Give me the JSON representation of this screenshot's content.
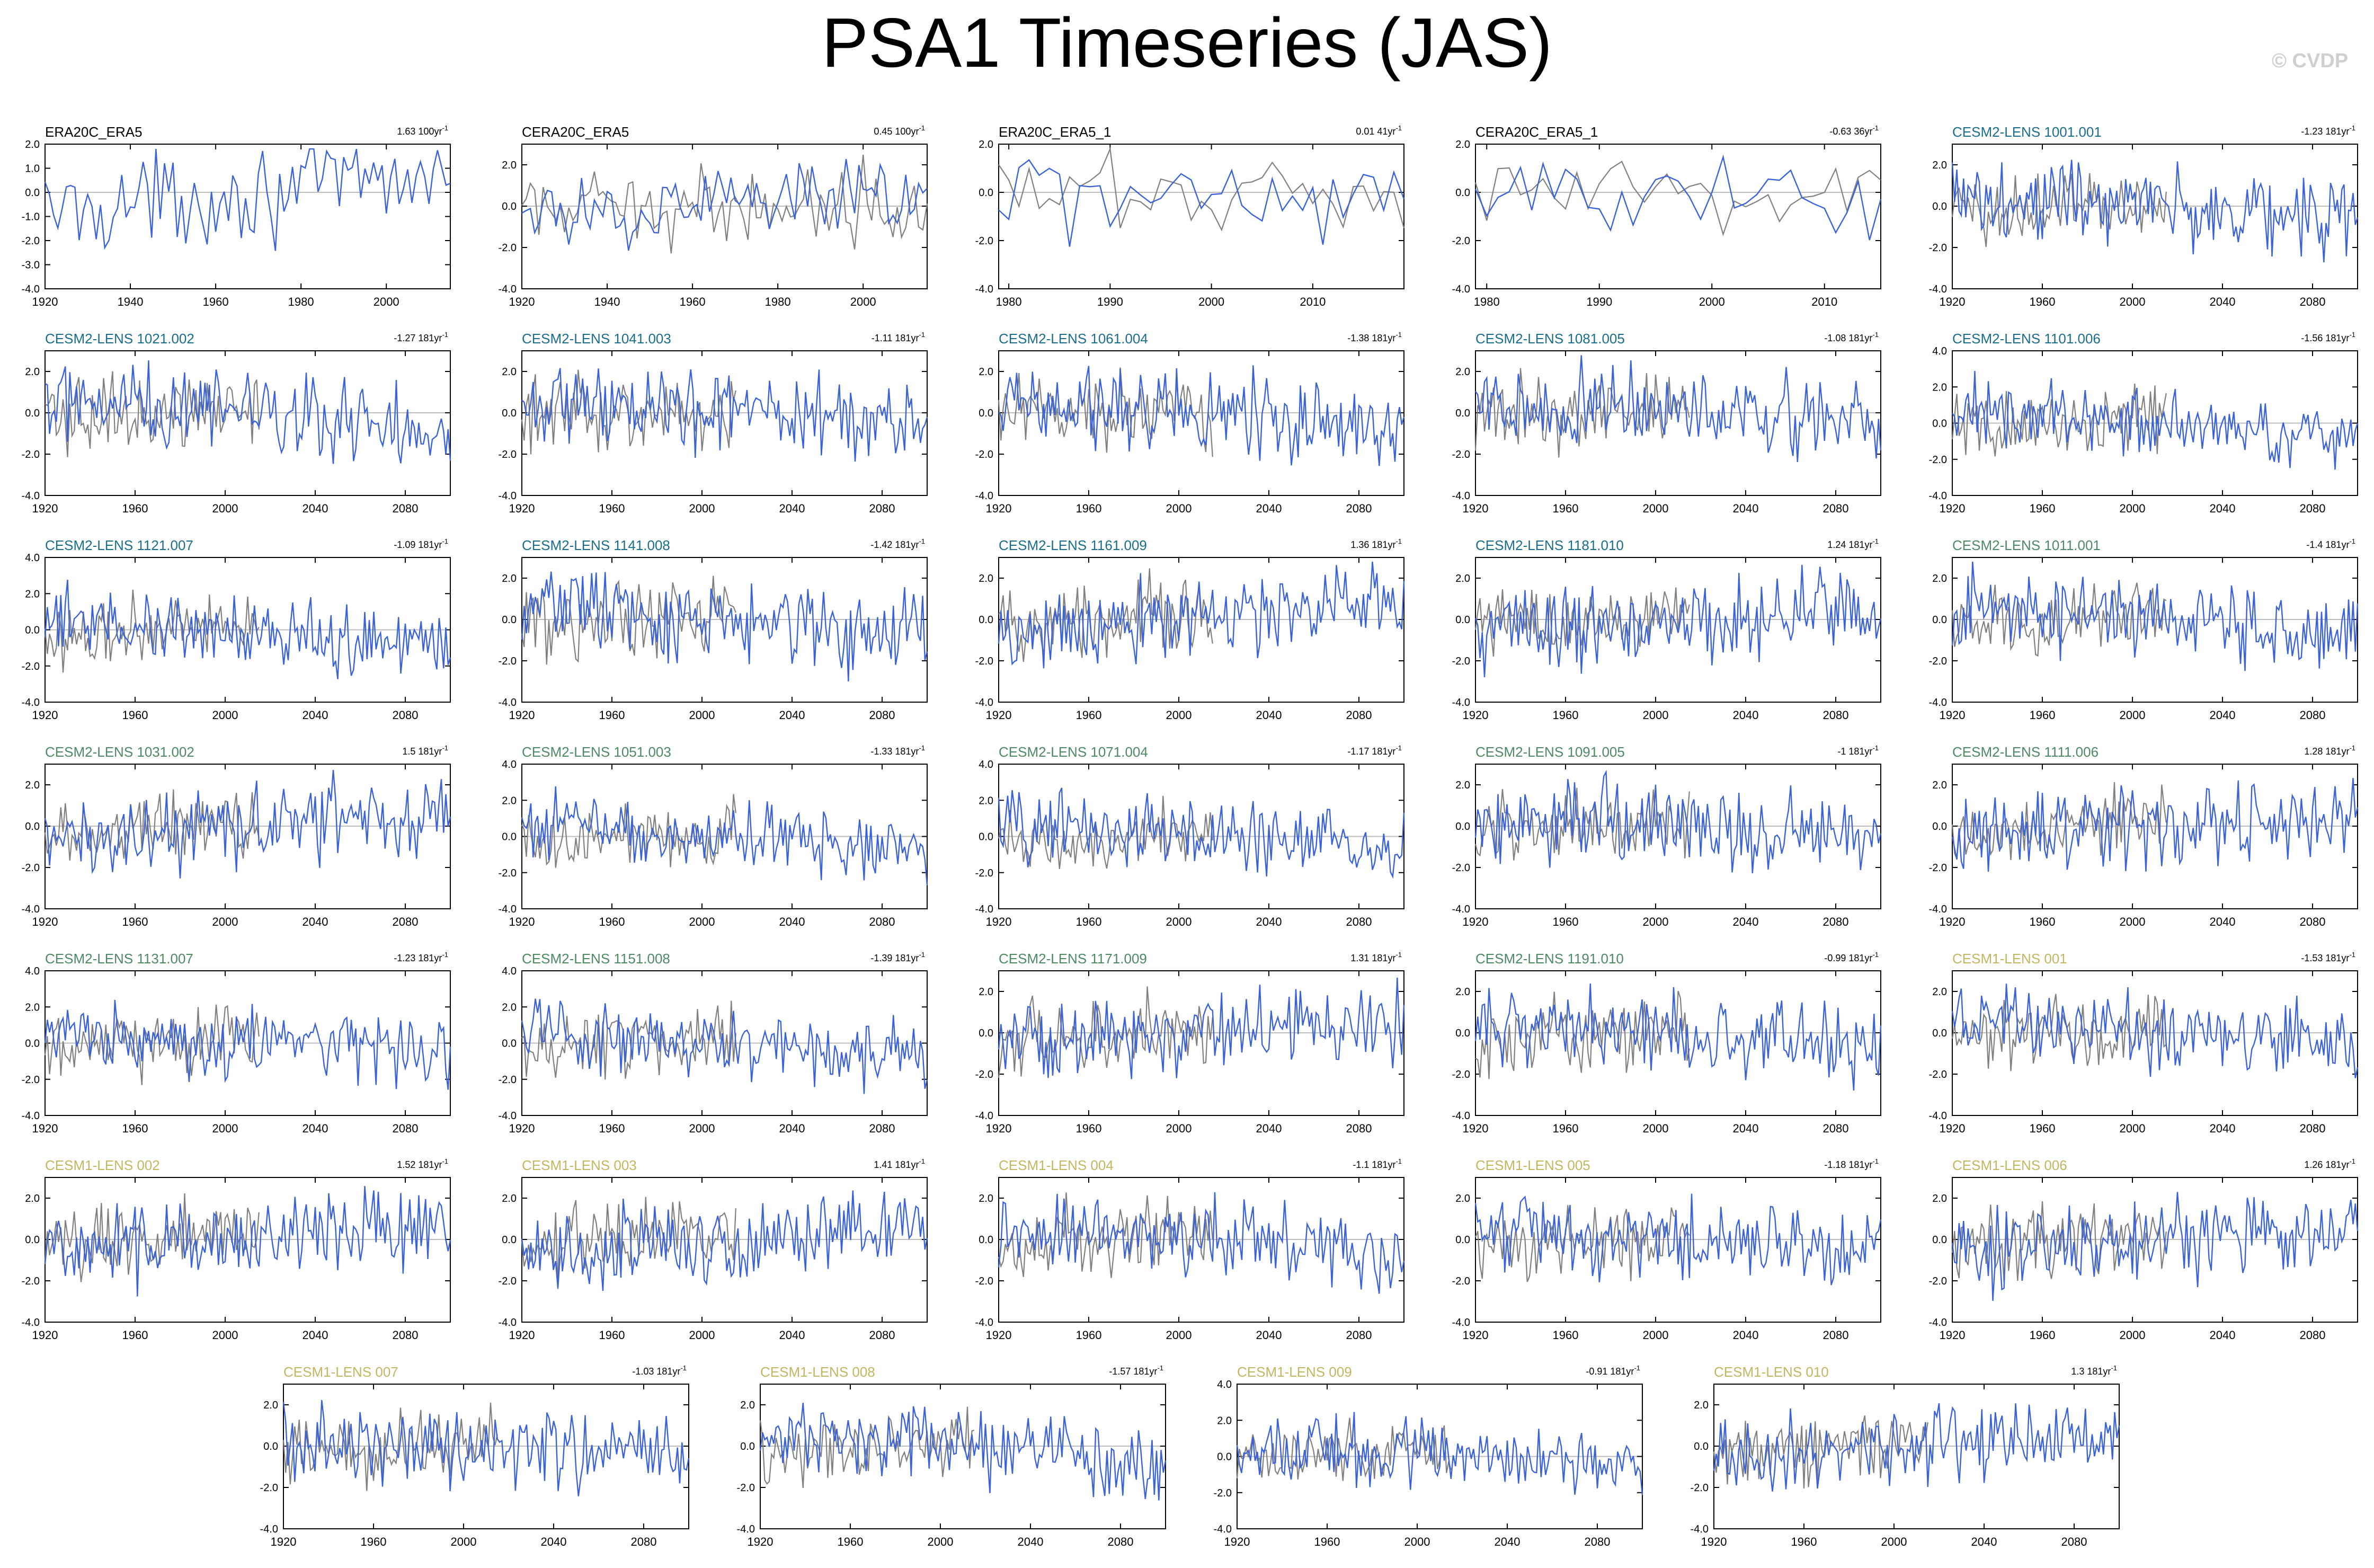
{
  "title": "PSA1 Timeseries (JAS)",
  "watermark": "© CVDP",
  "colors": {
    "obs_label": "#000000",
    "cesm2_smbb": "#1a6e8c",
    "cesm2_cmip6": "#4d8a63",
    "cesm1": "#c3b660",
    "model_line": "#3a62d9",
    "obs_line": "#808080",
    "zero_line": "#bdbdbd"
  },
  "chart_data": [
    {
      "type": "line",
      "title": "ERA20C_ERA5",
      "trend": "1.63 100yr",
      "group": "obs",
      "series_kind": "single",
      "xlim": [
        1920,
        2015
      ],
      "xticks": [
        1920,
        1940,
        1960,
        1980,
        2000
      ],
      "yticks": [
        "2.0",
        "1.0",
        "0.0",
        "-1.0",
        "-2.0",
        "-3.0",
        "-4.0"
      ],
      "ylim": [
        -4,
        2
      ]
    },
    {
      "type": "line",
      "title": "CERA20C_ERA5",
      "trend": "0.45 100yr",
      "group": "obs",
      "series_kind": "double",
      "xlim": [
        1920,
        2015
      ],
      "xticks": [
        1920,
        1940,
        1960,
        1980,
        2000
      ],
      "yticks": [
        "2.0",
        "0.0",
        "-2.0",
        "-4.0"
      ],
      "ylim": [
        -4,
        3
      ]
    },
    {
      "type": "line",
      "title": "ERA20C_ERA5_1",
      "trend": "0.01 41yr",
      "group": "obs",
      "series_kind": "double",
      "xlim": [
        1979,
        2019
      ],
      "xticks": [
        1980,
        1990,
        2000,
        2010
      ],
      "yticks": [
        "2.0",
        "0.0",
        "-2.0",
        "-4.0"
      ],
      "ylim": [
        -4,
        2
      ]
    },
    {
      "type": "line",
      "title": "CERA20C_ERA5_1",
      "trend": "-0.63 36yr",
      "group": "obs",
      "series_kind": "double",
      "xlim": [
        1979,
        2015
      ],
      "xticks": [
        1980,
        1990,
        2000,
        2010
      ],
      "yticks": [
        "2.0",
        "0.0",
        "-2.0",
        "-4.0"
      ],
      "ylim": [
        -4,
        2
      ]
    },
    {
      "type": "line",
      "title": "CESM2-LENS 1001.001",
      "trend": "-1.23 181yr",
      "group": "smbb",
      "series_kind": "long",
      "xlim": [
        1920,
        2100
      ],
      "xticks": [
        1920,
        1960,
        2000,
        2040,
        2080
      ],
      "yticks": [
        "2.0",
        "0.0",
        "-2.0",
        "-4.0"
      ],
      "ylim": [
        -4,
        3
      ]
    },
    {
      "type": "line",
      "title": "CESM2-LENS 1021.002",
      "trend": "-1.27 181yr",
      "group": "smbb",
      "series_kind": "long",
      "xlim": [
        1920,
        2100
      ],
      "xticks": [
        1920,
        1960,
        2000,
        2040,
        2080
      ],
      "yticks": [
        "2.0",
        "0.0",
        "-2.0",
        "-4.0"
      ],
      "ylim": [
        -4,
        3
      ]
    },
    {
      "type": "line",
      "title": "CESM2-LENS 1041.003",
      "trend": "-1.11 181yr",
      "group": "smbb",
      "series_kind": "long",
      "xlim": [
        1920,
        2100
      ],
      "xticks": [
        1920,
        1960,
        2000,
        2040,
        2080
      ],
      "yticks": [
        "2.0",
        "0.0",
        "-2.0",
        "-4.0"
      ],
      "ylim": [
        -4,
        3
      ]
    },
    {
      "type": "line",
      "title": "CESM2-LENS 1061.004",
      "trend": "-1.38 181yr",
      "group": "smbb",
      "series_kind": "long",
      "xlim": [
        1920,
        2100
      ],
      "xticks": [
        1920,
        1960,
        2000,
        2040,
        2080
      ],
      "yticks": [
        "2.0",
        "0.0",
        "-2.0",
        "-4.0"
      ],
      "ylim": [
        -4,
        3
      ]
    },
    {
      "type": "line",
      "title": "CESM2-LENS 1081.005",
      "trend": "-1.08 181yr",
      "group": "smbb",
      "series_kind": "long",
      "xlim": [
        1920,
        2100
      ],
      "xticks": [
        1920,
        1960,
        2000,
        2040,
        2080
      ],
      "yticks": [
        "2.0",
        "0.0",
        "-2.0",
        "-4.0"
      ],
      "ylim": [
        -4,
        3
      ]
    },
    {
      "type": "line",
      "title": "CESM2-LENS 1101.006",
      "trend": "-1.56 181yr",
      "group": "smbb",
      "series_kind": "long",
      "xlim": [
        1920,
        2100
      ],
      "xticks": [
        1920,
        1960,
        2000,
        2040,
        2080
      ],
      "yticks": [
        "4.0",
        "2.0",
        "0.0",
        "-2.0",
        "-4.0"
      ],
      "ylim": [
        -4,
        4
      ]
    },
    {
      "type": "line",
      "title": "CESM2-LENS 1121.007",
      "trend": "-1.09 181yr",
      "group": "smbb",
      "series_kind": "long",
      "xlim": [
        1920,
        2100
      ],
      "xticks": [
        1920,
        1960,
        2000,
        2040,
        2080
      ],
      "yticks": [
        "4.0",
        "2.0",
        "0.0",
        "-2.0",
        "-4.0"
      ],
      "ylim": [
        -4,
        4
      ]
    },
    {
      "type": "line",
      "title": "CESM2-LENS 1141.008",
      "trend": "-1.42 181yr",
      "group": "smbb",
      "series_kind": "long",
      "xlim": [
        1920,
        2100
      ],
      "xticks": [
        1920,
        1960,
        2000,
        2040,
        2080
      ],
      "yticks": [
        "2.0",
        "0.0",
        "-2.0",
        "-4.0"
      ],
      "ylim": [
        -4,
        3
      ]
    },
    {
      "type": "line",
      "title": "CESM2-LENS 1161.009",
      "trend": "1.36 181yr",
      "group": "smbb",
      "series_kind": "long",
      "xlim": [
        1920,
        2100
      ],
      "xticks": [
        1920,
        1960,
        2000,
        2040,
        2080
      ],
      "yticks": [
        "2.0",
        "0.0",
        "-2.0",
        "-4.0"
      ],
      "ylim": [
        -4,
        3
      ]
    },
    {
      "type": "line",
      "title": "CESM2-LENS 1181.010",
      "trend": "1.24 181yr",
      "group": "smbb",
      "series_kind": "long",
      "xlim": [
        1920,
        2100
      ],
      "xticks": [
        1920,
        1960,
        2000,
        2040,
        2080
      ],
      "yticks": [
        "2.0",
        "0.0",
        "-2.0",
        "-4.0"
      ],
      "ylim": [
        -4,
        3
      ]
    },
    {
      "type": "line",
      "title": "CESM2-LENS 1011.001",
      "trend": "-1.4 181yr",
      "group": "cmip6",
      "series_kind": "long",
      "xlim": [
        1920,
        2100
      ],
      "xticks": [
        1920,
        1960,
        2000,
        2040,
        2080
      ],
      "yticks": [
        "2.0",
        "0.0",
        "-2.0",
        "-4.0"
      ],
      "ylim": [
        -4,
        3
      ]
    },
    {
      "type": "line",
      "title": "CESM2-LENS 1031.002",
      "trend": "1.5 181yr",
      "group": "cmip6",
      "series_kind": "long",
      "xlim": [
        1920,
        2100
      ],
      "xticks": [
        1920,
        1960,
        2000,
        2040,
        2080
      ],
      "yticks": [
        "2.0",
        "0.0",
        "-2.0",
        "-4.0"
      ],
      "ylim": [
        -4,
        3
      ]
    },
    {
      "type": "line",
      "title": "CESM2-LENS 1051.003",
      "trend": "-1.33 181yr",
      "group": "cmip6",
      "series_kind": "long",
      "xlim": [
        1920,
        2100
      ],
      "xticks": [
        1920,
        1960,
        2000,
        2040,
        2080
      ],
      "yticks": [
        "4.0",
        "2.0",
        "0.0",
        "-2.0",
        "-4.0"
      ],
      "ylim": [
        -4,
        4
      ]
    },
    {
      "type": "line",
      "title": "CESM2-LENS 1071.004",
      "trend": "-1.17 181yr",
      "group": "cmip6",
      "series_kind": "long",
      "xlim": [
        1920,
        2100
      ],
      "xticks": [
        1920,
        1960,
        2000,
        2040,
        2080
      ],
      "yticks": [
        "4.0",
        "2.0",
        "0.0",
        "-2.0",
        "-4.0"
      ],
      "ylim": [
        -4,
        4
      ]
    },
    {
      "type": "line",
      "title": "CESM2-LENS 1091.005",
      "trend": "-1 181yr",
      "group": "cmip6",
      "series_kind": "long",
      "xlim": [
        1920,
        2100
      ],
      "xticks": [
        1920,
        1960,
        2000,
        2040,
        2080
      ],
      "yticks": [
        "2.0",
        "0.0",
        "-2.0",
        "-4.0"
      ],
      "ylim": [
        -4,
        3
      ]
    },
    {
      "type": "line",
      "title": "CESM2-LENS 1111.006",
      "trend": "1.28 181yr",
      "group": "cmip6",
      "series_kind": "long",
      "xlim": [
        1920,
        2100
      ],
      "xticks": [
        1920,
        1960,
        2000,
        2040,
        2080
      ],
      "yticks": [
        "2.0",
        "0.0",
        "-2.0",
        "-4.0"
      ],
      "ylim": [
        -4,
        3
      ]
    },
    {
      "type": "line",
      "title": "CESM2-LENS 1131.007",
      "trend": "-1.23 181yr",
      "group": "cmip6",
      "series_kind": "long",
      "xlim": [
        1920,
        2100
      ],
      "xticks": [
        1920,
        1960,
        2000,
        2040,
        2080
      ],
      "yticks": [
        "4.0",
        "2.0",
        "0.0",
        "-2.0",
        "-4.0"
      ],
      "ylim": [
        -4,
        4
      ]
    },
    {
      "type": "line",
      "title": "CESM2-LENS 1151.008",
      "trend": "-1.39 181yr",
      "group": "cmip6",
      "series_kind": "long",
      "xlim": [
        1920,
        2100
      ],
      "xticks": [
        1920,
        1960,
        2000,
        2040,
        2080
      ],
      "yticks": [
        "4.0",
        "2.0",
        "0.0",
        "-2.0",
        "-4.0"
      ],
      "ylim": [
        -4,
        4
      ]
    },
    {
      "type": "line",
      "title": "CESM2-LENS 1171.009",
      "trend": "1.31 181yr",
      "group": "cmip6",
      "series_kind": "long",
      "xlim": [
        1920,
        2100
      ],
      "xticks": [
        1920,
        1960,
        2000,
        2040,
        2080
      ],
      "yticks": [
        "2.0",
        "0.0",
        "-2.0",
        "-4.0"
      ],
      "ylim": [
        -4,
        3
      ]
    },
    {
      "type": "line",
      "title": "CESM2-LENS 1191.010",
      "trend": "-0.99 181yr",
      "group": "cmip6",
      "series_kind": "long",
      "xlim": [
        1920,
        2100
      ],
      "xticks": [
        1920,
        1960,
        2000,
        2040,
        2080
      ],
      "yticks": [
        "2.0",
        "0.0",
        "-2.0",
        "-4.0"
      ],
      "ylim": [
        -4,
        3
      ]
    },
    {
      "type": "line",
      "title": "CESM1-LENS 001",
      "trend": "-1.53 181yr",
      "group": "cesm1",
      "series_kind": "long",
      "xlim": [
        1920,
        2100
      ],
      "xticks": [
        1920,
        1960,
        2000,
        2040,
        2080
      ],
      "yticks": [
        "2.0",
        "0.0",
        "-2.0",
        "-4.0"
      ],
      "ylim": [
        -4,
        3
      ]
    },
    {
      "type": "line",
      "title": "CESM1-LENS 002",
      "trend": "1.52 181yr",
      "group": "cesm1",
      "series_kind": "long",
      "xlim": [
        1920,
        2100
      ],
      "xticks": [
        1920,
        1960,
        2000,
        2040,
        2080
      ],
      "yticks": [
        "2.0",
        "0.0",
        "-2.0",
        "-4.0"
      ],
      "ylim": [
        -4,
        3
      ]
    },
    {
      "type": "line",
      "title": "CESM1-LENS 003",
      "trend": "1.41 181yr",
      "group": "cesm1",
      "series_kind": "long",
      "xlim": [
        1920,
        2100
      ],
      "xticks": [
        1920,
        1960,
        2000,
        2040,
        2080
      ],
      "yticks": [
        "2.0",
        "0.0",
        "-2.0",
        "-4.0"
      ],
      "ylim": [
        -4,
        3
      ]
    },
    {
      "type": "line",
      "title": "CESM1-LENS 004",
      "trend": "-1.1 181yr",
      "group": "cesm1",
      "series_kind": "long",
      "xlim": [
        1920,
        2100
      ],
      "xticks": [
        1920,
        1960,
        2000,
        2040,
        2080
      ],
      "yticks": [
        "2.0",
        "0.0",
        "-2.0",
        "-4.0"
      ],
      "ylim": [
        -4,
        3
      ]
    },
    {
      "type": "line",
      "title": "CESM1-LENS 005",
      "trend": "-1.18 181yr",
      "group": "cesm1",
      "series_kind": "long",
      "xlim": [
        1920,
        2100
      ],
      "xticks": [
        1920,
        1960,
        2000,
        2040,
        2080
      ],
      "yticks": [
        "2.0",
        "0.0",
        "-2.0",
        "-4.0"
      ],
      "ylim": [
        -4,
        3
      ]
    },
    {
      "type": "line",
      "title": "CESM1-LENS 006",
      "trend": "1.26 181yr",
      "group": "cesm1",
      "series_kind": "long",
      "xlim": [
        1920,
        2100
      ],
      "xticks": [
        1920,
        1960,
        2000,
        2040,
        2080
      ],
      "yticks": [
        "2.0",
        "0.0",
        "-2.0",
        "-4.0"
      ],
      "ylim": [
        -4,
        3
      ]
    },
    {
      "type": "line",
      "title": "CESM1-LENS 007",
      "trend": "-1.03 181yr",
      "group": "cesm1",
      "series_kind": "long",
      "xlim": [
        1920,
        2100
      ],
      "xticks": [
        1920,
        1960,
        2000,
        2040,
        2080
      ],
      "yticks": [
        "2.0",
        "0.0",
        "-2.0",
        "-4.0"
      ],
      "ylim": [
        -4,
        3
      ]
    },
    {
      "type": "line",
      "title": "CESM1-LENS 008",
      "trend": "-1.57 181yr",
      "group": "cesm1",
      "series_kind": "long",
      "xlim": [
        1920,
        2100
      ],
      "xticks": [
        1920,
        1960,
        2000,
        2040,
        2080
      ],
      "yticks": [
        "2.0",
        "0.0",
        "-2.0",
        "-4.0"
      ],
      "ylim": [
        -4,
        3
      ]
    },
    {
      "type": "line",
      "title": "CESM1-LENS 009",
      "trend": "-0.91 181yr",
      "group": "cesm1",
      "series_kind": "long",
      "xlim": [
        1920,
        2100
      ],
      "xticks": [
        1920,
        1960,
        2000,
        2040,
        2080
      ],
      "yticks": [
        "4.0",
        "2.0",
        "0.0",
        "-2.0",
        "-4.0"
      ],
      "ylim": [
        -4,
        4
      ]
    },
    {
      "type": "line",
      "title": "CESM1-LENS 010",
      "trend": "1.3 181yr",
      "group": "cesm1",
      "series_kind": "long",
      "xlim": [
        1920,
        2100
      ],
      "xticks": [
        1920,
        1960,
        2000,
        2040,
        2080
      ],
      "yticks": [
        "2.0",
        "0.0",
        "-2.0",
        "-4.0"
      ],
      "ylim": [
        -4,
        3
      ]
    }
  ]
}
